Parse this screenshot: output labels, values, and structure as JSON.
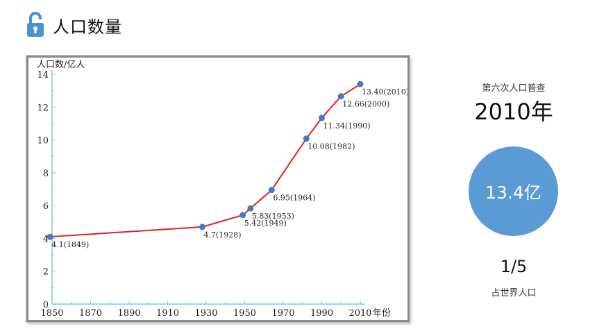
{
  "header": {
    "title": "人口数量",
    "icon": "unlocked-padlock-icon",
    "icon_color": "#4a90d9"
  },
  "chart_data": {
    "type": "line",
    "ylabel": "人口数/亿人",
    "xlabel": "年份",
    "xlim": [
      1850,
      2010
    ],
    "ylim": [
      0,
      14
    ],
    "x_ticks": [
      1850,
      1870,
      1890,
      1910,
      1930,
      1950,
      1970,
      1990,
      2010
    ],
    "y_ticks": [
      0,
      2,
      4,
      6,
      8,
      10,
      12,
      14
    ],
    "grid": false,
    "line_color": "#e02020",
    "point_color": "#4a78c2",
    "series": [
      {
        "points": [
          {
            "x": 1849,
            "y": 4.1,
            "label": "4.1(1849)"
          },
          {
            "x": 1928,
            "y": 4.7,
            "label": "4.7(1928)"
          },
          {
            "x": 1949,
            "y": 5.42,
            "label": "5.42(1949)"
          },
          {
            "x": 1953,
            "y": 5.83,
            "label": "5.83(1953)"
          },
          {
            "x": 1964,
            "y": 6.95,
            "label": "6.95(1964)"
          },
          {
            "x": 1982,
            "y": 10.08,
            "label": "10.08(1982)"
          },
          {
            "x": 1990,
            "y": 11.34,
            "label": "11.34(1990)"
          },
          {
            "x": 2000,
            "y": 12.66,
            "label": "12.66(2000)"
          },
          {
            "x": 2010,
            "y": 13.4,
            "label": "13.40(2010)"
          }
        ]
      }
    ]
  },
  "side": {
    "census_label": "第六次人口普查",
    "census_year": "2010年",
    "population": "13.4亿",
    "circle_color": "#5b9bd5",
    "share": "1/5",
    "share_label": "占世界人口"
  }
}
